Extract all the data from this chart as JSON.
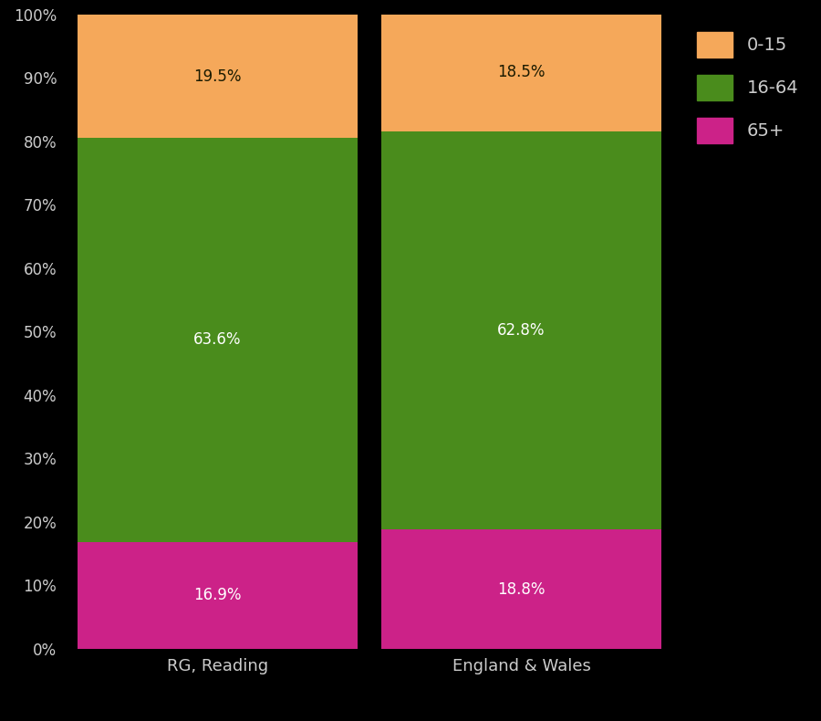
{
  "categories": [
    "RG, Reading",
    "England & Wales"
  ],
  "segments": {
    "65+": [
      16.9,
      18.8
    ],
    "16-64": [
      63.6,
      62.8
    ],
    "0-15": [
      19.5,
      18.5
    ]
  },
  "colors": {
    "65+": "#cc2288",
    "16-64": "#4a8c1c",
    "0-15": "#f5a85a"
  },
  "labels": {
    "65+": [
      "16.9%",
      "18.8%"
    ],
    "16-64": [
      "63.6%",
      "62.8%"
    ],
    "0-15": [
      "19.5%",
      "18.5%"
    ]
  },
  "label_colors": {
    "65+": "#ffffff",
    "16-64": "#ffffff",
    "0-15": "#1a1a00"
  },
  "yticks": [
    0,
    10,
    20,
    30,
    40,
    50,
    60,
    70,
    80,
    90,
    100
  ],
  "ytick_labels": [
    "0%",
    "10%",
    "20%",
    "30%",
    "40%",
    "50%",
    "60%",
    "70%",
    "80%",
    "90%",
    "100%"
  ],
  "background_color": "#000000",
  "text_color": "#cccccc",
  "bar_width": 0.92,
  "figsize": [
    9.0,
    7.9
  ],
  "dpi": 100,
  "legend_order": [
    "0-15",
    "16-64",
    "65+"
  ]
}
